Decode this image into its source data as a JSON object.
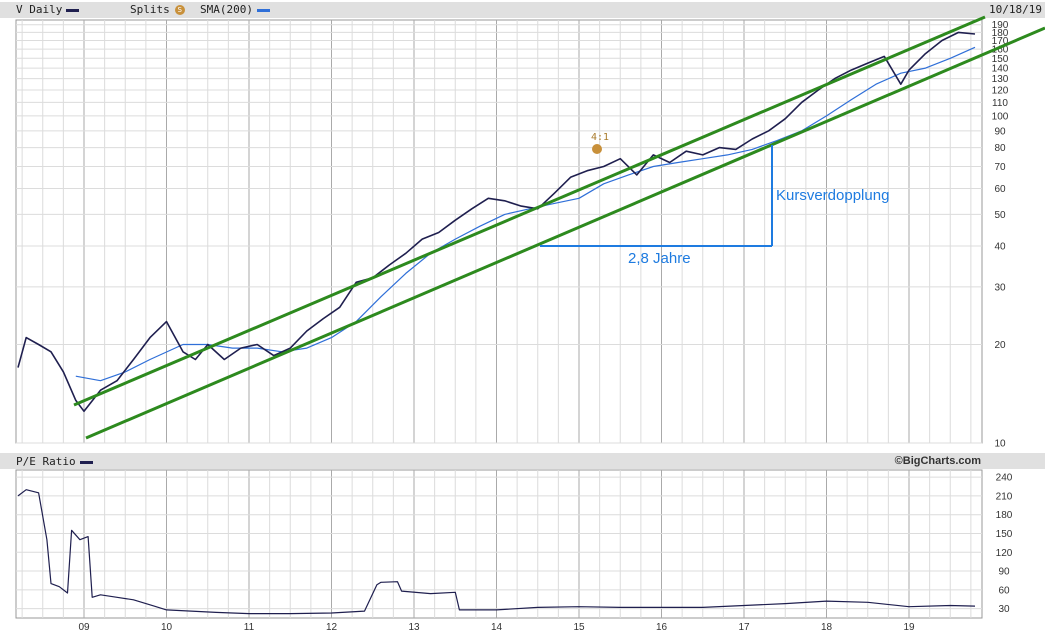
{
  "header": {
    "ticker_label": "V Daily",
    "splits_label": "Splits",
    "split_icon": "S",
    "sma_label": "SMA(200)",
    "date": "10/18/19"
  },
  "lower_header": {
    "pe_label": "P/E Ratio",
    "credit": "©BigCharts.com"
  },
  "colors": {
    "price": "#1f1f4f",
    "sma": "#2f6fd8",
    "channel": "#2d8a1e",
    "annotation": "#1e7be0",
    "split": "#c8903a",
    "grid": "#c8c8c8",
    "band": "#e0e0e0"
  },
  "annotations": {
    "split_label": "4:1",
    "vertical_label": "Kursverdopplung",
    "horizontal_label": "2,8 Jahre"
  },
  "chart_data": [
    {
      "type": "line",
      "scale": "log",
      "y_ticks": [
        10,
        20,
        30,
        40,
        50,
        60,
        70,
        80,
        90,
        100,
        110,
        120,
        130,
        140,
        150,
        160,
        170,
        180,
        190
      ],
      "x_ticks": [
        "09",
        "10",
        "11",
        "12",
        "13",
        "14",
        "15",
        "16",
        "17",
        "18",
        "19"
      ],
      "ylim": [
        10,
        195
      ],
      "series": [
        {
          "name": "V Daily",
          "x": [
            2008.2,
            2008.3,
            2008.45,
            2008.6,
            2008.75,
            2008.9,
            2009.0,
            2009.2,
            2009.4,
            2009.6,
            2009.8,
            2010.0,
            2010.2,
            2010.35,
            2010.5,
            2010.7,
            2010.9,
            2011.1,
            2011.3,
            2011.5,
            2011.7,
            2011.9,
            2012.1,
            2012.3,
            2012.5,
            2012.7,
            2012.9,
            2013.1,
            2013.3,
            2013.5,
            2013.7,
            2013.9,
            2014.1,
            2014.3,
            2014.5,
            2014.7,
            2014.9,
            2015.1,
            2015.3,
            2015.5,
            2015.7,
            2015.9,
            2016.1,
            2016.3,
            2016.5,
            2016.7,
            2016.9,
            2017.1,
            2017.3,
            2017.5,
            2017.7,
            2017.9,
            2018.1,
            2018.3,
            2018.5,
            2018.7,
            2018.9,
            2019.0,
            2019.2,
            2019.4,
            2019.6,
            2019.8
          ],
          "values": [
            17,
            21,
            20,
            19,
            16.5,
            13.5,
            12.5,
            14.5,
            15.5,
            18,
            21,
            23.5,
            19,
            18,
            20,
            18,
            19.5,
            20,
            18.5,
            19.5,
            22,
            24,
            26,
            31,
            32,
            35,
            38,
            42,
            44,
            48,
            52,
            56,
            55,
            53,
            52,
            58,
            65,
            68,
            70,
            74,
            66,
            76,
            72,
            78,
            76,
            80,
            79,
            85,
            90,
            98,
            110,
            120,
            130,
            138,
            145,
            152,
            125,
            138,
            155,
            170,
            180,
            178
          ]
        },
        {
          "name": "SMA(200)",
          "x": [
            2008.9,
            2009.2,
            2009.5,
            2009.8,
            2010.2,
            2010.5,
            2010.8,
            2011.1,
            2011.4,
            2011.7,
            2012.0,
            2012.3,
            2012.6,
            2012.9,
            2013.2,
            2013.5,
            2013.8,
            2014.1,
            2014.4,
            2014.7,
            2015.0,
            2015.3,
            2015.6,
            2015.9,
            2016.2,
            2016.5,
            2016.8,
            2017.1,
            2017.4,
            2017.7,
            2018.0,
            2018.3,
            2018.6,
            2018.9,
            2019.2,
            2019.5,
            2019.8
          ],
          "values": [
            16,
            15.5,
            16.5,
            18,
            20,
            20,
            19.5,
            19.5,
            19,
            19.5,
            21,
            23.5,
            28,
            33,
            38,
            42,
            46,
            50,
            52,
            54,
            56,
            62,
            66,
            70,
            72,
            74,
            76,
            79,
            84,
            90,
            100,
            112,
            125,
            135,
            140,
            150,
            162
          ]
        }
      ]
    },
    {
      "type": "line",
      "y_ticks": [
        30,
        60,
        90,
        120,
        150,
        180,
        210,
        240
      ],
      "x_ticks": [
        "09",
        "10",
        "11",
        "12",
        "13",
        "14",
        "15",
        "16",
        "17",
        "18",
        "19"
      ],
      "ylim": [
        15,
        245
      ],
      "series": [
        {
          "name": "P/E Ratio",
          "x": [
            2008.2,
            2008.3,
            2008.45,
            2008.55,
            2008.6,
            2008.7,
            2008.8,
            2008.85,
            2008.95,
            2009.05,
            2009.1,
            2009.2,
            2009.4,
            2009.6,
            2009.85,
            2010.0,
            2010.3,
            2010.6,
            2011.0,
            2011.5,
            2012.0,
            2012.4,
            2012.55,
            2012.6,
            2012.8,
            2012.85,
            2013.2,
            2013.5,
            2013.55,
            2014.0,
            2014.5,
            2015.0,
            2015.5,
            2016.0,
            2016.5,
            2017.0,
            2017.5,
            2018.0,
            2018.5,
            2019.0,
            2019.5,
            2019.8
          ],
          "values": [
            210,
            220,
            215,
            140,
            70,
            65,
            55,
            155,
            140,
            145,
            48,
            52,
            48,
            44,
            34,
            28,
            26,
            24,
            22,
            22,
            23,
            26,
            68,
            72,
            73,
            58,
            54,
            56,
            28,
            28,
            32,
            33,
            32,
            32,
            32,
            35,
            38,
            42,
            40,
            33,
            35,
            34
          ]
        }
      ]
    }
  ]
}
